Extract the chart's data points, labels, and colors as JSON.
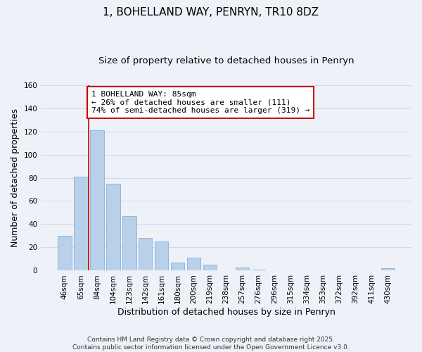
{
  "title": "1, BOHELLAND WAY, PENRYN, TR10 8DZ",
  "subtitle": "Size of property relative to detached houses in Penryn",
  "xlabel": "Distribution of detached houses by size in Penryn",
  "ylabel": "Number of detached properties",
  "bar_labels": [
    "46sqm",
    "65sqm",
    "84sqm",
    "104sqm",
    "123sqm",
    "142sqm",
    "161sqm",
    "180sqm",
    "200sqm",
    "219sqm",
    "238sqm",
    "257sqm",
    "276sqm",
    "296sqm",
    "315sqm",
    "334sqm",
    "353sqm",
    "372sqm",
    "392sqm",
    "411sqm",
    "430sqm"
  ],
  "bar_values": [
    30,
    81,
    121,
    75,
    47,
    28,
    25,
    7,
    11,
    5,
    0,
    3,
    1,
    0,
    0,
    0,
    0,
    0,
    0,
    0,
    2
  ],
  "bar_color": "#b8d0ea",
  "bar_edge_color": "#8ab0d0",
  "highlight_bar_index": 2,
  "highlight_line_color": "#cc0000",
  "ylim": [
    0,
    160
  ],
  "yticks": [
    0,
    20,
    40,
    60,
    80,
    100,
    120,
    140,
    160
  ],
  "annotation_line1": "1 BOHELLAND WAY: 85sqm",
  "annotation_line2": "← 26% of detached houses are smaller (111)",
  "annotation_line3": "74% of semi-detached houses are larger (319) →",
  "grid_color": "#d0d8e8",
  "background_color": "#eef2f8",
  "footer_line1": "Contains HM Land Registry data © Crown copyright and database right 2025.",
  "footer_line2": "Contains public sector information licensed under the Open Government Licence v3.0.",
  "title_fontsize": 11,
  "subtitle_fontsize": 9.5,
  "axis_label_fontsize": 9,
  "tick_fontsize": 7.5,
  "annotation_fontsize": 8,
  "footer_fontsize": 6.5
}
